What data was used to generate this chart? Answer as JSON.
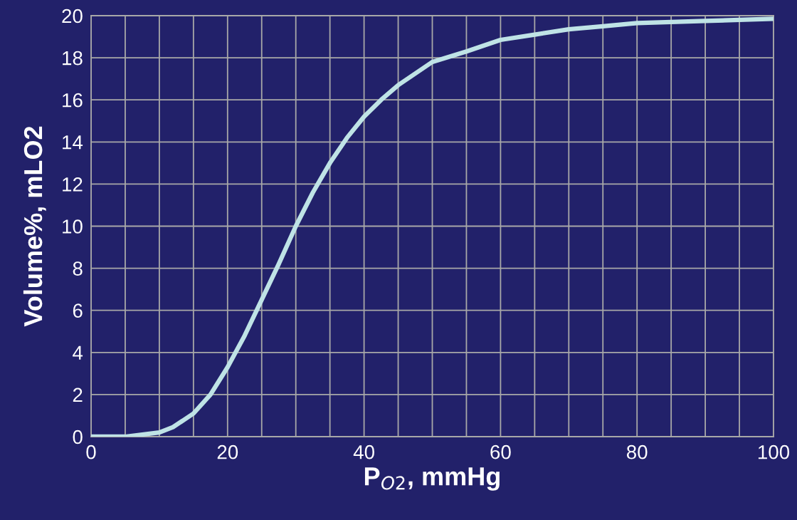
{
  "chart_data": {
    "type": "line",
    "xlabel": "P$_{O2}$, mmHg",
    "ylabel": "Volume%, mLO2",
    "x": [
      0,
      5,
      10,
      12,
      15,
      17.5,
      20,
      22.5,
      25,
      27.5,
      30,
      32.5,
      35,
      37.5,
      40,
      42.5,
      45,
      50,
      55,
      60,
      65,
      70,
      75,
      80,
      85,
      90,
      95,
      100
    ],
    "series": [
      {
        "color": "#bfe3e6",
        "values": [
          0,
          0,
          0.2,
          0.45,
          1.1,
          2.0,
          3.3,
          4.8,
          6.5,
          8.2,
          10,
          11.6,
          13,
          14.2,
          15.2,
          16.0,
          16.7,
          17.8,
          18.3,
          18.85,
          19.1,
          19.35,
          19.5,
          19.65,
          19.7,
          19.75,
          19.8,
          19.85
        ]
      }
    ],
    "xlim": [
      0,
      100
    ],
    "ylim": [
      0,
      20
    ],
    "xticks": [
      0,
      {
        "value": 5,
        "label": null
      },
      {
        "value": 10,
        "label": null
      },
      {
        "value": 15,
        "label": null
      },
      20,
      {
        "value": 25,
        "label": null
      },
      {
        "value": 30,
        "label": null
      },
      {
        "value": 35,
        "label": null
      },
      40,
      {
        "value": 45,
        "label": null
      },
      {
        "value": 50,
        "label": null
      },
      {
        "value": 55,
        "label": null
      },
      60,
      {
        "value": 65,
        "label": null
      },
      {
        "value": 70,
        "label": null
      },
      {
        "value": 75,
        "label": null
      },
      80,
      {
        "value": 85,
        "label": null
      },
      {
        "value": 90,
        "label": null
      },
      {
        "value": 95,
        "label": null
      },
      100
    ],
    "yticks": [
      0,
      2,
      4,
      6,
      8,
      10,
      12,
      14,
      16,
      18,
      20
    ],
    "grid": true,
    "marker": "none",
    "line_style": "solid"
  }
}
